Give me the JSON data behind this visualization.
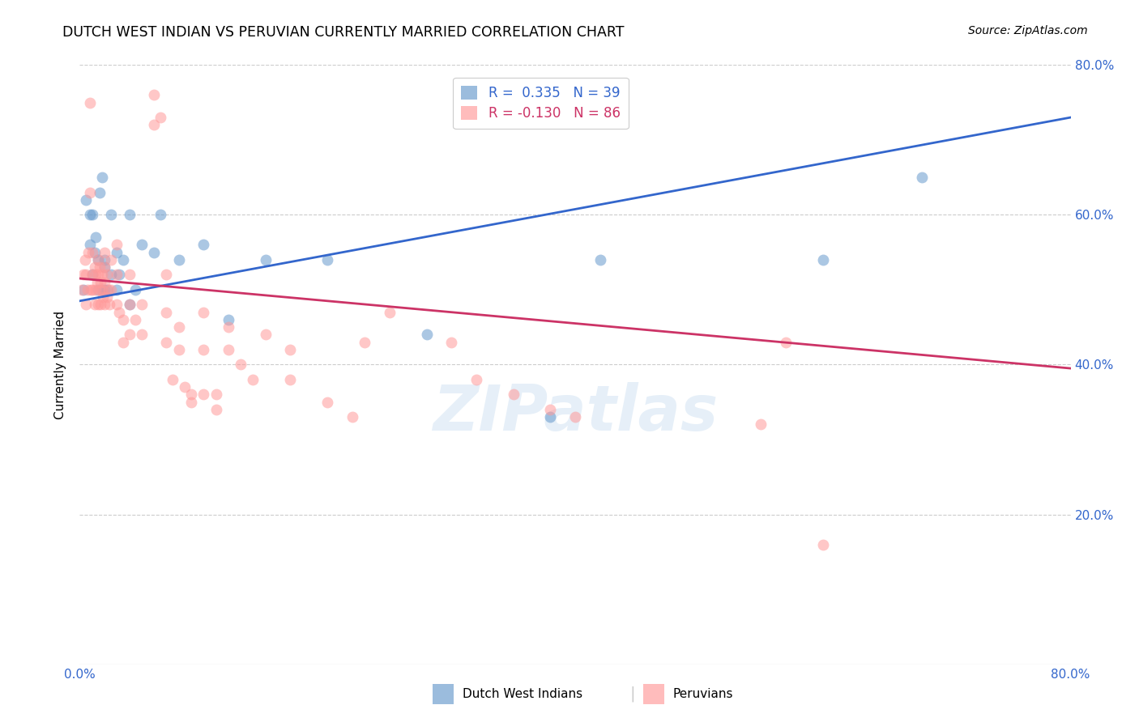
{
  "title": "DUTCH WEST INDIAN VS PERUVIAN CURRENTLY MARRIED CORRELATION CHART",
  "source": "Source: ZipAtlas.com",
  "ylabel": "Currently Married",
  "watermark": "ZIPatlas",
  "xlim": [
    0.0,
    0.8
  ],
  "ylim": [
    0.0,
    0.8
  ],
  "grid_color": "#cccccc",
  "background_color": "#ffffff",
  "blue_color": "#6699cc",
  "pink_color": "#ff9999",
  "blue_line_color": "#3366cc",
  "pink_line_color": "#cc3366",
  "legend_R_blue": "0.335",
  "legend_N_blue": "39",
  "legend_R_pink": "-0.130",
  "legend_N_pink": "86",
  "blue_scatter_x": [
    0.003,
    0.005,
    0.008,
    0.008,
    0.01,
    0.01,
    0.012,
    0.013,
    0.015,
    0.015,
    0.016,
    0.018,
    0.018,
    0.02,
    0.02,
    0.02,
    0.022,
    0.025,
    0.025,
    0.03,
    0.03,
    0.032,
    0.035,
    0.04,
    0.04,
    0.045,
    0.05,
    0.06,
    0.065,
    0.08,
    0.1,
    0.12,
    0.15,
    0.2,
    0.28,
    0.38,
    0.42,
    0.6,
    0.68
  ],
  "blue_scatter_y": [
    0.5,
    0.62,
    0.56,
    0.6,
    0.52,
    0.6,
    0.55,
    0.57,
    0.5,
    0.54,
    0.63,
    0.5,
    0.65,
    0.54,
    0.5,
    0.53,
    0.5,
    0.52,
    0.6,
    0.5,
    0.55,
    0.52,
    0.54,
    0.48,
    0.6,
    0.5,
    0.56,
    0.55,
    0.6,
    0.54,
    0.56,
    0.46,
    0.54,
    0.54,
    0.44,
    0.33,
    0.54,
    0.54,
    0.65
  ],
  "pink_scatter_x": [
    0.002,
    0.003,
    0.004,
    0.005,
    0.005,
    0.006,
    0.007,
    0.008,
    0.008,
    0.009,
    0.01,
    0.01,
    0.01,
    0.012,
    0.012,
    0.013,
    0.013,
    0.014,
    0.015,
    0.015,
    0.015,
    0.016,
    0.016,
    0.017,
    0.017,
    0.018,
    0.018,
    0.019,
    0.02,
    0.02,
    0.02,
    0.02,
    0.022,
    0.022,
    0.023,
    0.024,
    0.025,
    0.025,
    0.03,
    0.03,
    0.03,
    0.032,
    0.035,
    0.035,
    0.04,
    0.04,
    0.04,
    0.045,
    0.05,
    0.05,
    0.06,
    0.06,
    0.065,
    0.07,
    0.07,
    0.07,
    0.075,
    0.08,
    0.08,
    0.085,
    0.09,
    0.09,
    0.1,
    0.1,
    0.1,
    0.11,
    0.11,
    0.12,
    0.12,
    0.13,
    0.14,
    0.15,
    0.17,
    0.17,
    0.2,
    0.22,
    0.23,
    0.25,
    0.3,
    0.32,
    0.35,
    0.38,
    0.4,
    0.55,
    0.57,
    0.6
  ],
  "pink_scatter_y": [
    0.5,
    0.52,
    0.54,
    0.48,
    0.52,
    0.5,
    0.55,
    0.63,
    0.75,
    0.5,
    0.5,
    0.52,
    0.55,
    0.48,
    0.53,
    0.5,
    0.52,
    0.51,
    0.48,
    0.52,
    0.54,
    0.5,
    0.53,
    0.48,
    0.51,
    0.5,
    0.52,
    0.49,
    0.48,
    0.51,
    0.53,
    0.55,
    0.49,
    0.52,
    0.5,
    0.48,
    0.5,
    0.54,
    0.48,
    0.52,
    0.56,
    0.47,
    0.43,
    0.46,
    0.44,
    0.48,
    0.52,
    0.46,
    0.44,
    0.48,
    0.72,
    0.76,
    0.73,
    0.52,
    0.47,
    0.43,
    0.38,
    0.45,
    0.42,
    0.37,
    0.36,
    0.35,
    0.36,
    0.42,
    0.47,
    0.34,
    0.36,
    0.42,
    0.45,
    0.4,
    0.38,
    0.44,
    0.42,
    0.38,
    0.35,
    0.33,
    0.43,
    0.47,
    0.43,
    0.38,
    0.36,
    0.34,
    0.33,
    0.32,
    0.43,
    0.16
  ],
  "blue_trendline_x": [
    0.0,
    0.8
  ],
  "blue_trendline_y": [
    0.485,
    0.73
  ],
  "pink_trendline_x": [
    0.0,
    0.8
  ],
  "pink_trendline_y": [
    0.515,
    0.395
  ],
  "legend_blue_label": "R =  0.335   N = 39",
  "legend_pink_label": "R = -0.130   N = 86",
  "bottom_label1": "Dutch West Indians",
  "bottom_label2": "Peruvians"
}
